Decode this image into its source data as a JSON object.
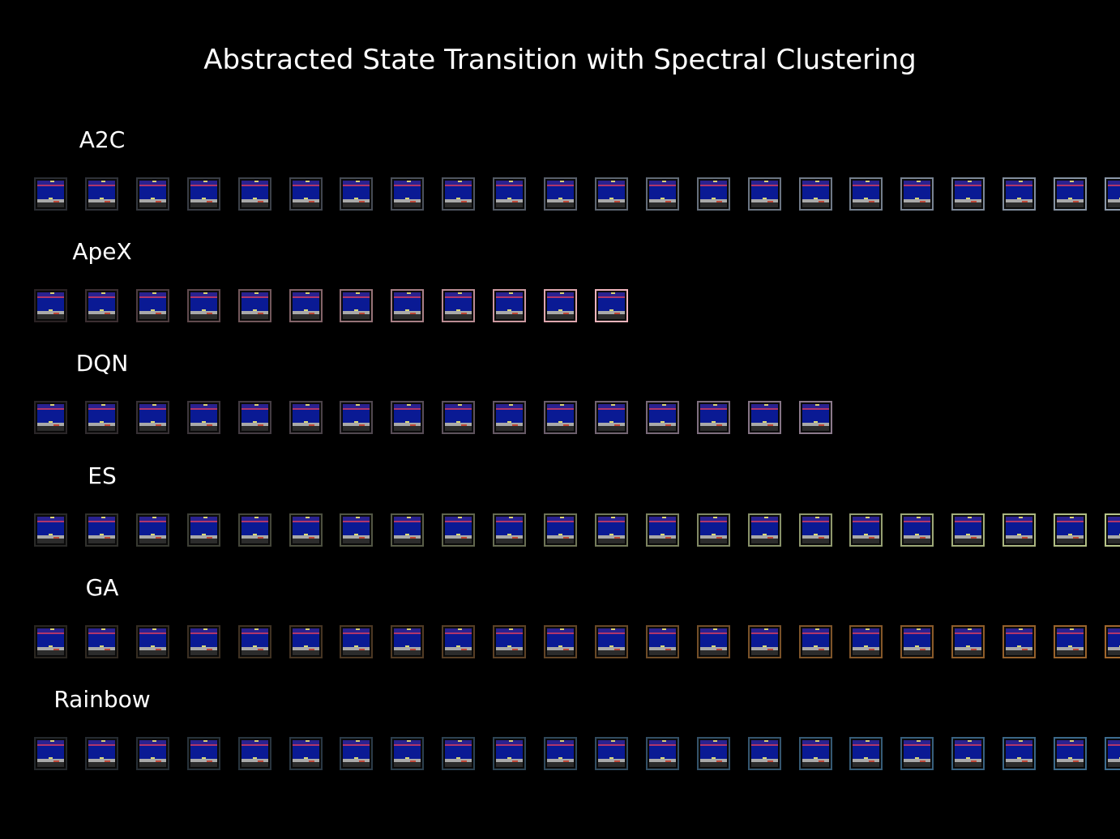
{
  "title": "Abstracted State Transition with Spectral Clustering",
  "colors": {
    "background": "#000000",
    "text": "#ffffff",
    "frame_screen": "#07157f"
  },
  "rows": [
    {
      "label": "A2C",
      "frame_count": 22,
      "visible_frames": 22,
      "border_start": "#2a2d33",
      "border_end": "#8a97a8"
    },
    {
      "label": "ApeX",
      "frame_count": 12,
      "visible_frames": 12,
      "border_start": "#2a2224",
      "border_end": "#f0b4bc"
    },
    {
      "label": "DQN",
      "frame_count": 16,
      "visible_frames": 16,
      "border_start": "#2a2628",
      "border_end": "#8c7a8c"
    },
    {
      "label": "ES",
      "frame_count": 22,
      "visible_frames": 22,
      "border_start": "#2a2a28",
      "border_end": "#b7c489"
    },
    {
      "label": "GA",
      "frame_count": 22,
      "visible_frames": 22,
      "border_start": "#2a2620",
      "border_end": "#a0662c"
    },
    {
      "label": "Rainbow",
      "frame_count": 22,
      "visible_frames": 22,
      "border_start": "#24282c",
      "border_end": "#3c6c8f"
    }
  ]
}
